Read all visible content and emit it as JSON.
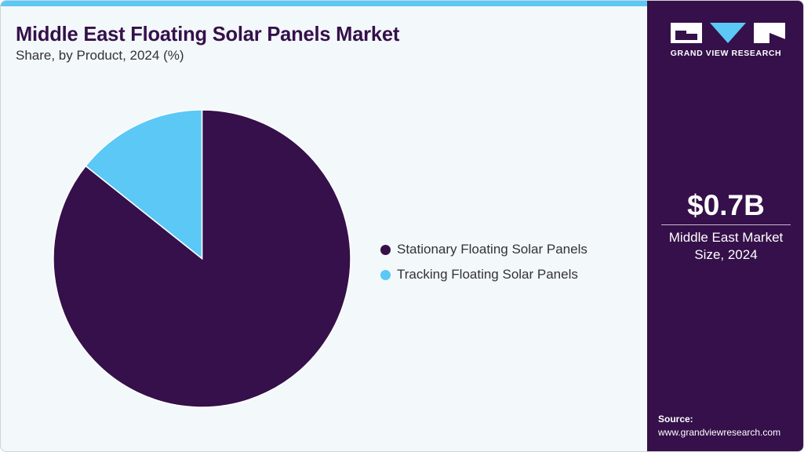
{
  "header": {
    "title": "Middle East Floating Solar Panels Market",
    "subtitle": "Share, by Product, 2024 (%)"
  },
  "colors": {
    "primary": "#35104a",
    "accent": "#5bc8f5",
    "background": "#f3f8fb"
  },
  "legend": {
    "items": [
      {
        "label": "Stationary Floating Solar Panels",
        "color": "#35104a"
      },
      {
        "label": "Tracking Floating Solar Panels",
        "color": "#5bc8f5"
      }
    ]
  },
  "sidebar": {
    "logo_text": "GRAND VIEW RESEARCH",
    "kpi_value": "$0.7B",
    "kpi_label_line1": "Middle East Market",
    "kpi_label_line2": "Size, 2024",
    "source_label": "Source:",
    "source_url": "www.grandviewresearch.com"
  },
  "chart_data": {
    "type": "pie",
    "title": "Middle East Floating Solar Panels Market",
    "subtitle": "Share, by Product, 2024 (%)",
    "categories": [
      "Stationary Floating Solar Panels",
      "Tracking Floating Solar Panels"
    ],
    "values": [
      85.7,
      14.3
    ],
    "colors": [
      "#35104a",
      "#5bc8f5"
    ],
    "legend_position": "right",
    "start_angle": "12 o'clock, slices ordered clockwise starting with Stationary"
  }
}
